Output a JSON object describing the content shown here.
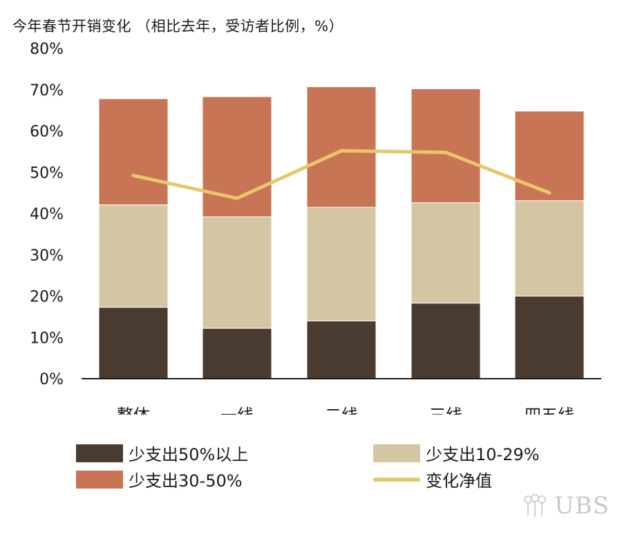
{
  "chart_data": {
    "type": "bar",
    "stacked": true,
    "title": "今年春节开销变化 （相比去年，受访者比例，%）",
    "categories": [
      "整体",
      "一线",
      "二线",
      "三线",
      "四五线"
    ],
    "series": [
      {
        "name": "少支出50%以上",
        "kind": "bar",
        "color": "#4a3b31",
        "values": [
          17.3,
          12.2,
          14.0,
          18.3,
          20.0
        ]
      },
      {
        "name": "少支出10-29%",
        "kind": "bar",
        "color": "#d4c5a3",
        "values": [
          24.8,
          27.0,
          27.5,
          24.3,
          23.1
        ]
      },
      {
        "name": "少支出30-50%",
        "kind": "bar",
        "color": "#c87555",
        "values": [
          25.7,
          29.1,
          29.2,
          27.6,
          21.7
        ]
      },
      {
        "name": "变化净值",
        "kind": "line",
        "color": "#e8c66b",
        "values": [
          49.2,
          43.7,
          55.2,
          54.8,
          45.0
        ]
      }
    ],
    "yticks": [
      "0%",
      "10%",
      "20%",
      "30%",
      "40%",
      "50%",
      "60%",
      "70%",
      "80%"
    ],
    "ylim": [
      0,
      80
    ],
    "legend_position": "bottom"
  },
  "legend": {
    "item1": "少支出50%以上",
    "item2": "少支出10-29%",
    "item3": "少支出30-50%",
    "item4": "变化净值"
  },
  "colors": {
    "dark": "#4a3b31",
    "beige": "#d4c5a3",
    "terracotta": "#c87555",
    "line": "#e8c66b"
  },
  "watermark": "UBS"
}
